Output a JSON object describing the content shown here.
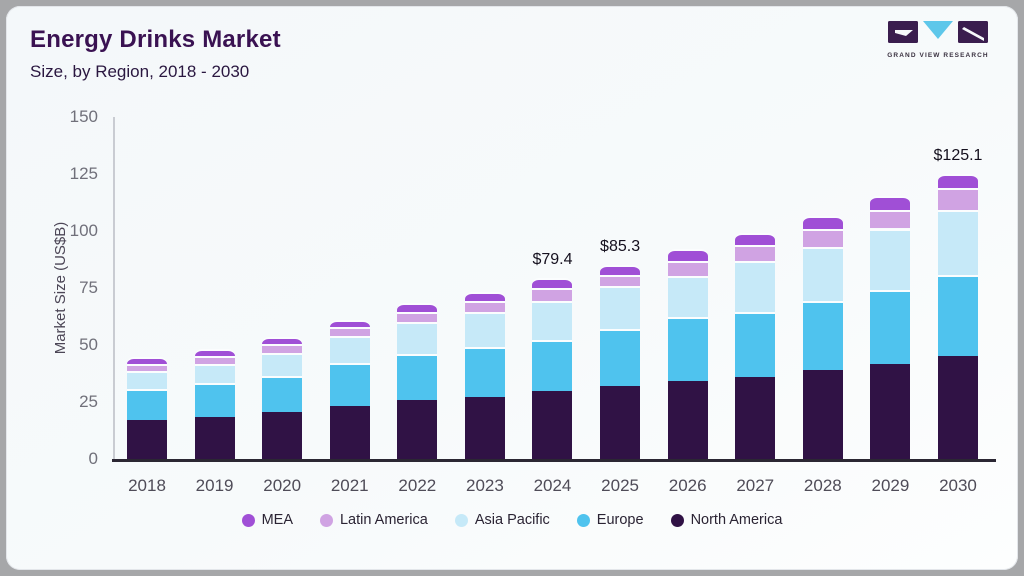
{
  "header": {
    "title": "Energy Drinks Market",
    "subtitle": "Size, by Region, 2018 - 2030"
  },
  "logo": {
    "name": "grand-view-research-logo",
    "text": "GRAND VIEW RESEARCH",
    "block_color": "#3a1d4e",
    "triangle_color": "#5ec7ea"
  },
  "chart_data": {
    "type": "bar",
    "stacked": true,
    "title": "Energy Drinks Market",
    "subtitle": "Size, by Region, 2018 - 2030",
    "xlabel": "",
    "ylabel": "Market Size (US$B)",
    "ylim": [
      0,
      150
    ],
    "yticks": [
      0,
      25,
      50,
      75,
      100,
      125,
      150
    ],
    "grid": false,
    "legend_position": "bottom",
    "categories": [
      "2018",
      "2019",
      "2020",
      "2021",
      "2022",
      "2023",
      "2024",
      "2025",
      "2026",
      "2027",
      "2028",
      "2029",
      "2030"
    ],
    "series": [
      {
        "name": "North America",
        "color": "#301245",
        "values": [
          17.0,
          18.4,
          20.6,
          23.2,
          25.9,
          27.2,
          30.0,
          32.2,
          34.2,
          36.0,
          39.0,
          41.7,
          45.0
        ]
      },
      {
        "name": "Europe",
        "color": "#4fc3ee",
        "values": [
          13.5,
          14.9,
          15.8,
          18.9,
          20.2,
          21.9,
          22.3,
          25.0,
          28.1,
          28.5,
          30.5,
          32.4,
          35.5
        ]
      },
      {
        "name": "Asia Pacific",
        "color": "#c6e9f8",
        "values": [
          8.0,
          8.4,
          10.1,
          11.8,
          14.0,
          15.4,
          17.0,
          18.6,
          18.0,
          22.3,
          23.5,
          27.0,
          28.5
        ]
      },
      {
        "name": "Latin America",
        "color": "#d0a3e3",
        "values": [
          3.3,
          3.3,
          3.8,
          3.9,
          4.4,
          4.8,
          5.7,
          5.1,
          6.5,
          7.2,
          7.7,
          8.0,
          9.9
        ]
      },
      {
        "name": "MEA",
        "color": "#a04fd6",
        "values": [
          2.9,
          3.2,
          3.2,
          3.2,
          3.9,
          3.9,
          4.4,
          4.4,
          5.3,
          5.3,
          6.0,
          6.3,
          6.2
        ]
      }
    ],
    "bar_labels": {
      "2024": "$79.4",
      "2025": "$85.3",
      "2030": "$125.1"
    },
    "legend_order": [
      "MEA",
      "Latin America",
      "Asia Pacific",
      "Europe",
      "North America"
    ]
  }
}
